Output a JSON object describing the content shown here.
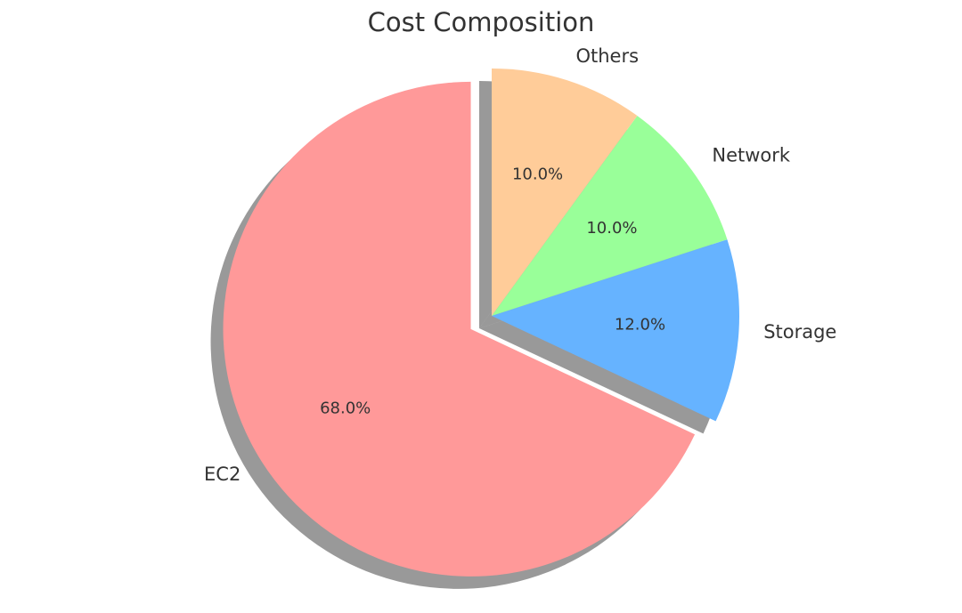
{
  "chart_data": {
    "type": "pie",
    "title": "Cost Composition",
    "categories": [
      "EC2",
      "Storage",
      "Network",
      "Others"
    ],
    "values": [
      68,
      12,
      10,
      10
    ],
    "value_labels": [
      "68.0%",
      "12.0%",
      "10.0%",
      "10.0%"
    ],
    "colors": [
      "#ff9999",
      "#66b3ff",
      "#99ff99",
      "#ffcc99"
    ],
    "explode": [
      0.1,
      0,
      0,
      0
    ],
    "start_angle": 90,
    "shadow": true
  }
}
